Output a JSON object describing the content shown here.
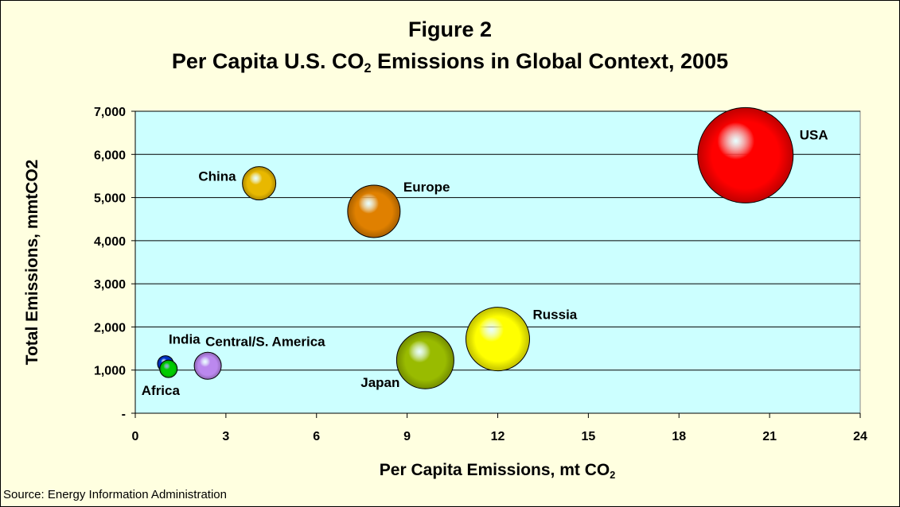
{
  "figure_label": "Figure 2",
  "title_pre": "Per Capita U.S. CO",
  "title_sub": "2",
  "title_post": " Emissions in Global Context, 2005",
  "source": "Source: Energy Information Administration",
  "chart_data": {
    "type": "scatter",
    "bubble": true,
    "xlabel_pre": "Per Capita Emissions, mt CO",
    "xlabel_sub": "2",
    "ylabel": "Total Emissions, mmtCO2",
    "xlim": [
      0,
      24
    ],
    "ylim": [
      0,
      7000
    ],
    "xticks": [
      0,
      3,
      6,
      9,
      12,
      15,
      18,
      21,
      24
    ],
    "xtick_labels": [
      "0",
      "3",
      "6",
      "9",
      "12",
      "15",
      "18",
      "21",
      "24"
    ],
    "yticks": [
      0,
      1000,
      2000,
      3000,
      4000,
      5000,
      6000,
      7000
    ],
    "ytick_labels": [
      "-",
      "1,000",
      "2,000",
      "3,000",
      "4,000",
      "5,000",
      "6,000",
      "7,000"
    ],
    "grid": "horizontal",
    "plot_background": "#ccffff",
    "series": [
      {
        "name": "USA",
        "x": 20.2,
        "y": 5980,
        "size": 60,
        "color": "#ff0000"
      },
      {
        "name": "China",
        "x": 4.1,
        "y": 5330,
        "size": 21,
        "color": "#e8b800"
      },
      {
        "name": "Europe",
        "x": 7.9,
        "y": 4680,
        "size": 33,
        "color": "#e08000"
      },
      {
        "name": "Russia",
        "x": 12.0,
        "y": 1720,
        "size": 40,
        "color": "#ffff00"
      },
      {
        "name": "Japan",
        "x": 9.6,
        "y": 1230,
        "size": 36,
        "color": "#99bb00"
      },
      {
        "name": "Central/S. America",
        "x": 2.4,
        "y": 1100,
        "size": 17,
        "color": "#bb88ee"
      },
      {
        "name": "India",
        "x": 1.0,
        "y": 1150,
        "size": 10,
        "color": "#0033cc"
      },
      {
        "name": "Africa",
        "x": 1.1,
        "y": 1030,
        "size": 11,
        "color": "#00cc00"
      }
    ]
  }
}
